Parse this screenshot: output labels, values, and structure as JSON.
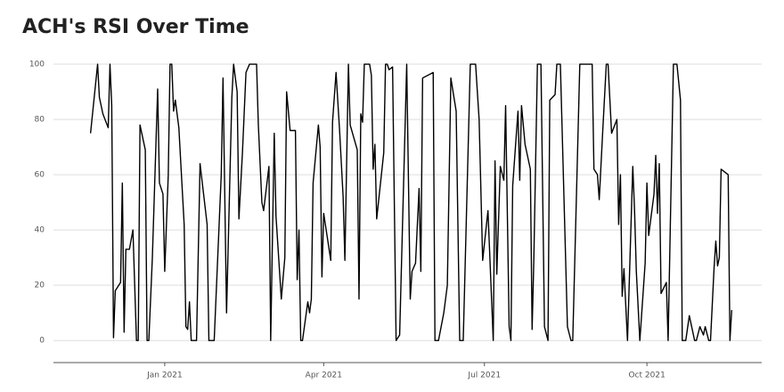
{
  "chart_data": {
    "type": "line",
    "title": "ACH's RSI Over Time",
    "x": [
      "2020-11-20",
      "2020-11-24",
      "2020-11-25",
      "2020-11-27",
      "2020-11-30",
      "2020-12-01",
      "2020-12-02",
      "2020-12-03",
      "2020-12-04",
      "2020-12-07",
      "2020-12-08",
      "2020-12-09",
      "2020-12-10",
      "2020-12-12",
      "2020-12-14",
      "2020-12-16",
      "2020-12-17",
      "2020-12-18",
      "2020-12-19",
      "2020-12-21",
      "2020-12-22",
      "2020-12-23",
      "2020-12-25",
      "2020-12-28",
      "2020-12-29",
      "2020-12-31",
      "2021-01-01",
      "2021-01-03",
      "2021-01-04",
      "2021-01-05",
      "2021-01-06",
      "2021-01-07",
      "2021-01-09",
      "2021-01-12",
      "2021-01-13",
      "2021-01-14",
      "2021-01-15",
      "2021-01-16",
      "2021-01-19",
      "2021-01-21",
      "2021-01-25",
      "2021-01-26",
      "2021-01-29",
      "2021-02-02",
      "2021-02-03",
      "2021-02-05",
      "2021-02-08",
      "2021-02-09",
      "2021-02-11",
      "2021-02-12",
      "2021-02-14",
      "2021-02-16",
      "2021-02-18",
      "2021-02-22",
      "2021-02-23",
      "2021-02-25",
      "2021-02-26",
      "2021-03-01",
      "2021-03-02",
      "2021-03-04",
      "2021-03-05",
      "2021-03-08",
      "2021-03-10",
      "2021-03-11",
      "2021-03-13",
      "2021-03-16",
      "2021-03-17",
      "2021-03-18",
      "2021-03-19",
      "2021-03-20",
      "2021-03-23",
      "2021-03-24",
      "2021-03-25",
      "2021-03-26",
      "2021-03-29",
      "2021-03-30",
      "2021-03-31",
      "2021-04-01",
      "2021-04-05",
      "2021-04-06",
      "2021-04-08",
      "2021-04-10",
      "2021-04-12",
      "2021-04-13",
      "2021-04-15",
      "2021-04-16",
      "2021-04-20",
      "2021-04-21",
      "2021-04-22",
      "2021-04-23",
      "2021-04-24",
      "2021-04-27",
      "2021-04-28",
      "2021-04-29",
      "2021-04-30",
      "2021-05-01",
      "2021-05-05",
      "2021-05-06",
      "2021-05-07",
      "2021-05-08",
      "2021-05-10",
      "2021-05-12",
      "2021-05-14",
      "2021-05-18",
      "2021-05-20",
      "2021-05-21",
      "2021-05-23",
      "2021-05-25",
      "2021-05-26",
      "2021-05-27",
      "2021-06-02",
      "2021-06-03",
      "2021-06-05",
      "2021-06-08",
      "2021-06-10",
      "2021-06-12",
      "2021-06-15",
      "2021-06-17",
      "2021-06-19",
      "2021-06-23",
      "2021-06-26",
      "2021-06-28",
      "2021-06-30",
      "2021-07-03",
      "2021-07-06",
      "2021-07-07",
      "2021-07-08",
      "2021-07-10",
      "2021-07-12",
      "2021-07-13",
      "2021-07-15",
      "2021-07-16",
      "2021-07-17",
      "2021-07-20",
      "2021-07-21",
      "2021-07-22",
      "2021-07-24",
      "2021-07-27",
      "2021-07-28",
      "2021-07-29",
      "2021-07-31",
      "2021-08-02",
      "2021-08-04",
      "2021-08-06",
      "2021-08-07",
      "2021-08-10",
      "2021-08-11",
      "2021-08-13",
      "2021-08-17",
      "2021-08-19",
      "2021-08-20",
      "2021-08-24",
      "2021-08-31",
      "2021-09-01",
      "2021-09-03",
      "2021-09-04",
      "2021-09-06",
      "2021-09-08",
      "2021-09-09",
      "2021-09-11",
      "2021-09-14",
      "2021-09-15",
      "2021-09-16",
      "2021-09-17",
      "2021-09-18",
      "2021-09-20",
      "2021-09-23",
      "2021-09-24",
      "2021-09-25",
      "2021-09-27",
      "2021-09-30",
      "2021-10-01",
      "2021-10-02",
      "2021-10-05",
      "2021-10-06",
      "2021-10-07",
      "2021-10-08",
      "2021-10-09",
      "2021-10-12",
      "2021-10-13",
      "2021-10-16",
      "2021-10-18",
      "2021-10-20",
      "2021-10-21",
      "2021-10-23",
      "2021-10-25",
      "2021-10-28",
      "2021-10-29",
      "2021-10-31",
      "2021-11-02",
      "2021-11-03",
      "2021-11-05",
      "2021-11-06",
      "2021-11-08",
      "2021-11-09",
      "2021-11-10",
      "2021-11-11",
      "2021-11-12",
      "2021-11-16",
      "2021-11-17",
      "2021-11-18"
    ],
    "series": [
      {
        "name": "RSI",
        "color": "#000000",
        "values": [
          75,
          100,
          88,
          82,
          77,
          100,
          85,
          1,
          18,
          21,
          57,
          3,
          33,
          33,
          40,
          0,
          0,
          78,
          75,
          69,
          0,
          0,
          30,
          91,
          57,
          53,
          25,
          60,
          100,
          100,
          83,
          87,
          77,
          42,
          5,
          4,
          14,
          0,
          0,
          64,
          42,
          0,
          0,
          60,
          95,
          10,
          88,
          100,
          90,
          44,
          68,
          97,
          100,
          100,
          78,
          50,
          47,
          63,
          0,
          75,
          45,
          15,
          30,
          90,
          76,
          76,
          22,
          40,
          0,
          0,
          14,
          10,
          15,
          57,
          78,
          70,
          23,
          46,
          29,
          79,
          97,
          76,
          52,
          29,
          100,
          78,
          69,
          15,
          82,
          79,
          100,
          100,
          96,
          62,
          71,
          44,
          68,
          100,
          100,
          98,
          99,
          0,
          2,
          100,
          15,
          25,
          28,
          55,
          25,
          95,
          97,
          0,
          0,
          10,
          20,
          95,
          83,
          0,
          0,
          100,
          100,
          80,
          29,
          47,
          0,
          65,
          24,
          63,
          58,
          85,
          5,
          0,
          56,
          83,
          58,
          85,
          71,
          62,
          4,
          30,
          100,
          100,
          5,
          0,
          87,
          89,
          100,
          100,
          5,
          0,
          0,
          100,
          100,
          62,
          60,
          51,
          76,
          100,
          100,
          75,
          80,
          42,
          60,
          16,
          26,
          0,
          63,
          47,
          25,
          0,
          28,
          57,
          38,
          53,
          67,
          46,
          64,
          17,
          21,
          0,
          100,
          100,
          87,
          0,
          0,
          9,
          0,
          0,
          5,
          2,
          5,
          0,
          0,
          26,
          36,
          27,
          30,
          62,
          60,
          0,
          11
        ]
      }
    ],
    "xlim": [
      "2020-10-30",
      "2021-12-05"
    ],
    "xticks": [
      {
        "value": "2021-01-01",
        "label": "Jan 2021"
      },
      {
        "value": "2021-04-01",
        "label": "Apr 2021"
      },
      {
        "value": "2021-07-01",
        "label": "Jul 2021"
      },
      {
        "value": "2021-10-01",
        "label": "Oct 2021"
      }
    ],
    "ylim": [
      -8,
      105.5
    ],
    "yticks": [
      0,
      20,
      40,
      60,
      80,
      100
    ],
    "grid": true
  }
}
